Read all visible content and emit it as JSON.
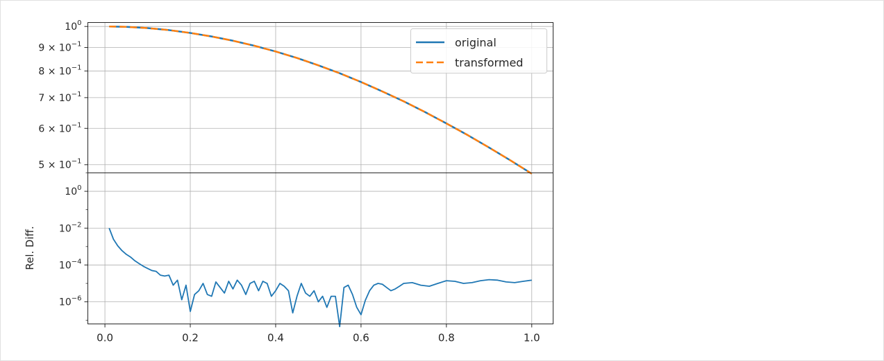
{
  "chart_data": [
    {
      "type": "line",
      "yscale": "log",
      "ylim": [
        0.48,
        1.02
      ],
      "xlim": [
        -0.04,
        1.05
      ],
      "grid": true,
      "legend_position": "top-right",
      "yticks": [
        {
          "value": 1.0,
          "label": "10",
          "sup": "0"
        },
        {
          "value": 0.9,
          "label": "9 × 10",
          "sup": "−1"
        },
        {
          "value": 0.8,
          "label": "8 × 10",
          "sup": "−1"
        },
        {
          "value": 0.7,
          "label": "7 × 10",
          "sup": "−1"
        },
        {
          "value": 0.6,
          "label": "6 × 10",
          "sup": "−1"
        },
        {
          "value": 0.5,
          "label": "5 × 10",
          "sup": "−1"
        }
      ],
      "series": [
        {
          "name": "original",
          "color": "#1f77b4",
          "style": "solid",
          "x": [
            0.01,
            0.05,
            0.1,
            0.15,
            0.2,
            0.25,
            0.3,
            0.35,
            0.4,
            0.45,
            0.5,
            0.55,
            0.6,
            0.65,
            0.7,
            0.75,
            0.8,
            0.85,
            0.9,
            0.95,
            1.0
          ],
          "y": [
            1.0,
            0.998,
            0.992,
            0.982,
            0.968,
            0.951,
            0.931,
            0.908,
            0.882,
            0.854,
            0.823,
            0.791,
            0.757,
            0.722,
            0.687,
            0.651,
            0.615,
            0.58,
            0.545,
            0.511,
            0.478
          ]
        },
        {
          "name": "transformed",
          "color": "#ff7f0e",
          "style": "dashed",
          "x": [
            0.01,
            0.05,
            0.1,
            0.15,
            0.2,
            0.25,
            0.3,
            0.35,
            0.4,
            0.45,
            0.5,
            0.55,
            0.6,
            0.65,
            0.7,
            0.75,
            0.8,
            0.85,
            0.9,
            0.95,
            1.0
          ],
          "y": [
            1.0,
            0.998,
            0.992,
            0.982,
            0.968,
            0.951,
            0.931,
            0.908,
            0.882,
            0.854,
            0.823,
            0.791,
            0.757,
            0.722,
            0.687,
            0.651,
            0.615,
            0.58,
            0.545,
            0.511,
            0.478
          ]
        }
      ]
    },
    {
      "type": "line",
      "yscale": "log",
      "ylabel": "Rel. Diff.",
      "ylim_exponent": [
        -7.2,
        1.0
      ],
      "xlim": [
        -0.04,
        1.05
      ],
      "grid": true,
      "xticks": [
        "0.0",
        "0.2",
        "0.4",
        "0.6",
        "0.8",
        "1.0"
      ],
      "xtick_values": [
        0.0,
        0.2,
        0.4,
        0.6,
        0.8,
        1.0
      ],
      "yticks": [
        {
          "exponent": 0,
          "label": "10",
          "sup": "0"
        },
        {
          "exponent": -2,
          "label": "10",
          "sup": "−2"
        },
        {
          "exponent": -4,
          "label": "10",
          "sup": "−4"
        },
        {
          "exponent": -6,
          "label": "10",
          "sup": "−6"
        }
      ],
      "series": [
        {
          "color": "#1f77b4",
          "style": "solid",
          "x": [
            0.01,
            0.02,
            0.03,
            0.04,
            0.05,
            0.06,
            0.07,
            0.08,
            0.09,
            0.1,
            0.11,
            0.12,
            0.13,
            0.14,
            0.15,
            0.16,
            0.17,
            0.18,
            0.19,
            0.2,
            0.21,
            0.22,
            0.23,
            0.24,
            0.25,
            0.26,
            0.27,
            0.28,
            0.29,
            0.3,
            0.31,
            0.32,
            0.33,
            0.34,
            0.35,
            0.36,
            0.37,
            0.38,
            0.39,
            0.4,
            0.41,
            0.42,
            0.43,
            0.44,
            0.45,
            0.46,
            0.47,
            0.48,
            0.49,
            0.5,
            0.51,
            0.52,
            0.53,
            0.54,
            0.55,
            0.56,
            0.57,
            0.58,
            0.59,
            0.6,
            0.61,
            0.62,
            0.63,
            0.64,
            0.65,
            0.66,
            0.67,
            0.68,
            0.69,
            0.7,
            0.72,
            0.74,
            0.76,
            0.78,
            0.8,
            0.82,
            0.84,
            0.86,
            0.88,
            0.9,
            0.92,
            0.94,
            0.96,
            0.98,
            1.0
          ],
          "y": [
            0.01,
            0.0025,
            0.0011,
            0.0006,
            0.00038,
            0.00027,
            0.00017,
            0.00012,
            8.5e-05,
            6.5e-05,
            5e-05,
            4.5e-05,
            2.8e-05,
            2.5e-05,
            2.8e-05,
            8e-06,
            1.5e-05,
            1.3e-06,
            8e-06,
            3e-07,
            2.5e-06,
            4e-06,
            1e-05,
            2.5e-06,
            2e-06,
            1.2e-05,
            6e-06,
            3e-06,
            1.3e-05,
            5e-06,
            1.5e-05,
            8e-06,
            2.5e-06,
            1e-05,
            1.3e-05,
            4e-06,
            1.3e-05,
            1e-05,
            2e-06,
            4e-06,
            1e-05,
            7e-06,
            4e-06,
            2.5e-07,
            2e-06,
            1e-05,
            3e-06,
            2e-06,
            4e-06,
            1e-06,
            2e-06,
            5e-07,
            2e-06,
            2e-06,
            4.5e-08,
            6e-06,
            8e-06,
            2.5e-06,
            5e-07,
            2e-07,
            1.2e-06,
            4e-06,
            8e-06,
            1e-05,
            9e-06,
            6e-06,
            4e-06,
            5e-06,
            7e-06,
            1e-05,
            1.1e-05,
            8e-06,
            7e-06,
            1e-05,
            1.4e-05,
            1.3e-05,
            1e-05,
            1.1e-05,
            1.4e-05,
            1.6e-05,
            1.5e-05,
            1.2e-05,
            1.1e-05,
            1.3e-05,
            1.5e-05
          ]
        }
      ]
    }
  ]
}
